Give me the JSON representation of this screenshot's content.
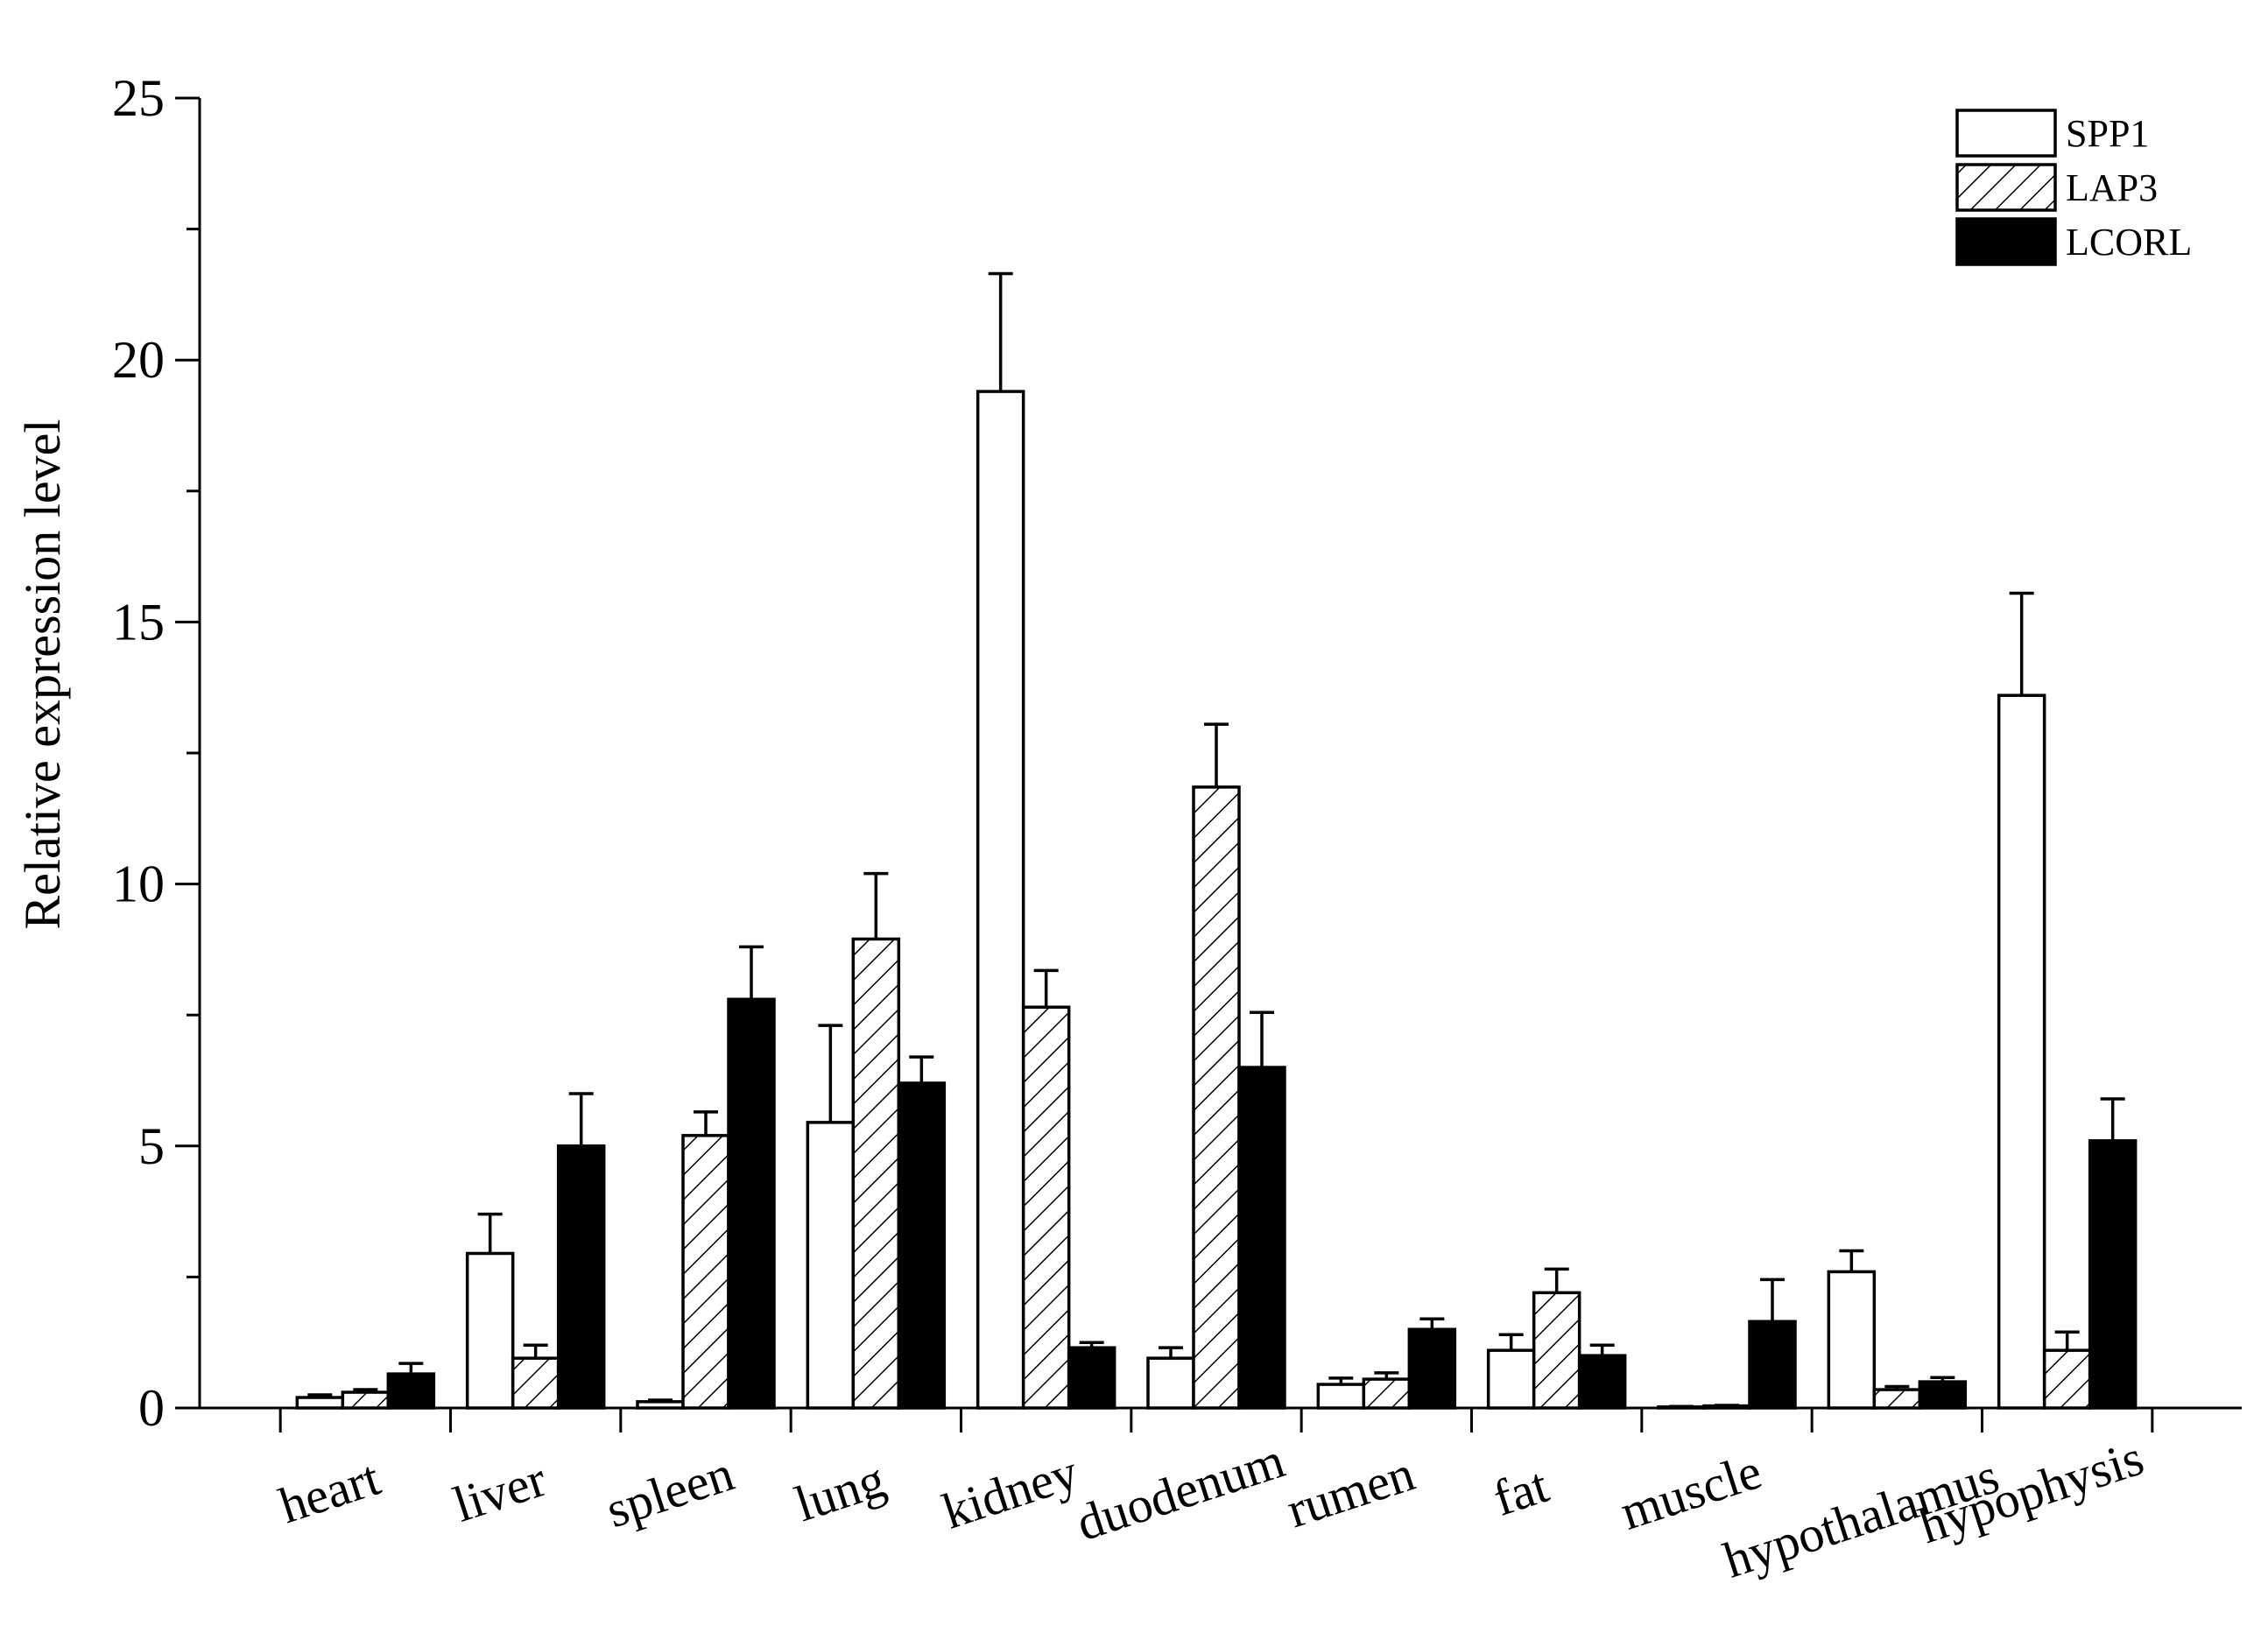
{
  "chart_data": {
    "type": "bar",
    "title": "",
    "xlabel": "",
    "ylabel": "Relative expression level",
    "ylim": [
      0,
      25
    ],
    "yticks": [
      0,
      5,
      10,
      15,
      20,
      25
    ],
    "legend_position": "top-right",
    "categories": [
      "heart",
      "liver",
      "spleen",
      "lung",
      "kidney",
      "duodenum",
      "rumen",
      "fat",
      "muscle",
      "hypothalamus",
      "hypophysis"
    ],
    "series": [
      {
        "name": "SPP1",
        "fill": "white",
        "values": [
          0.2,
          2.95,
          0.12,
          5.45,
          19.4,
          0.95,
          0.45,
          1.1,
          0.02,
          2.6,
          13.6
        ],
        "errors": [
          0.05,
          0.75,
          0.03,
          1.85,
          2.25,
          0.2,
          0.12,
          0.3,
          0.01,
          0.4,
          1.95
        ]
      },
      {
        "name": "LAP3",
        "fill": "hatched",
        "values": [
          0.3,
          0.95,
          5.2,
          8.95,
          7.65,
          11.85,
          0.55,
          2.2,
          0.04,
          0.35,
          1.1
        ],
        "errors": [
          0.05,
          0.25,
          0.45,
          1.25,
          0.7,
          1.2,
          0.12,
          0.45,
          0.01,
          0.06,
          0.35
        ]
      },
      {
        "name": "LCORL",
        "fill": "black",
        "values": [
          0.65,
          5.0,
          7.8,
          6.2,
          1.15,
          6.5,
          1.5,
          1.0,
          1.65,
          0.5,
          5.1
        ],
        "errors": [
          0.2,
          1.0,
          1.0,
          0.5,
          0.1,
          1.05,
          0.2,
          0.2,
          0.8,
          0.08,
          0.8
        ]
      }
    ]
  }
}
